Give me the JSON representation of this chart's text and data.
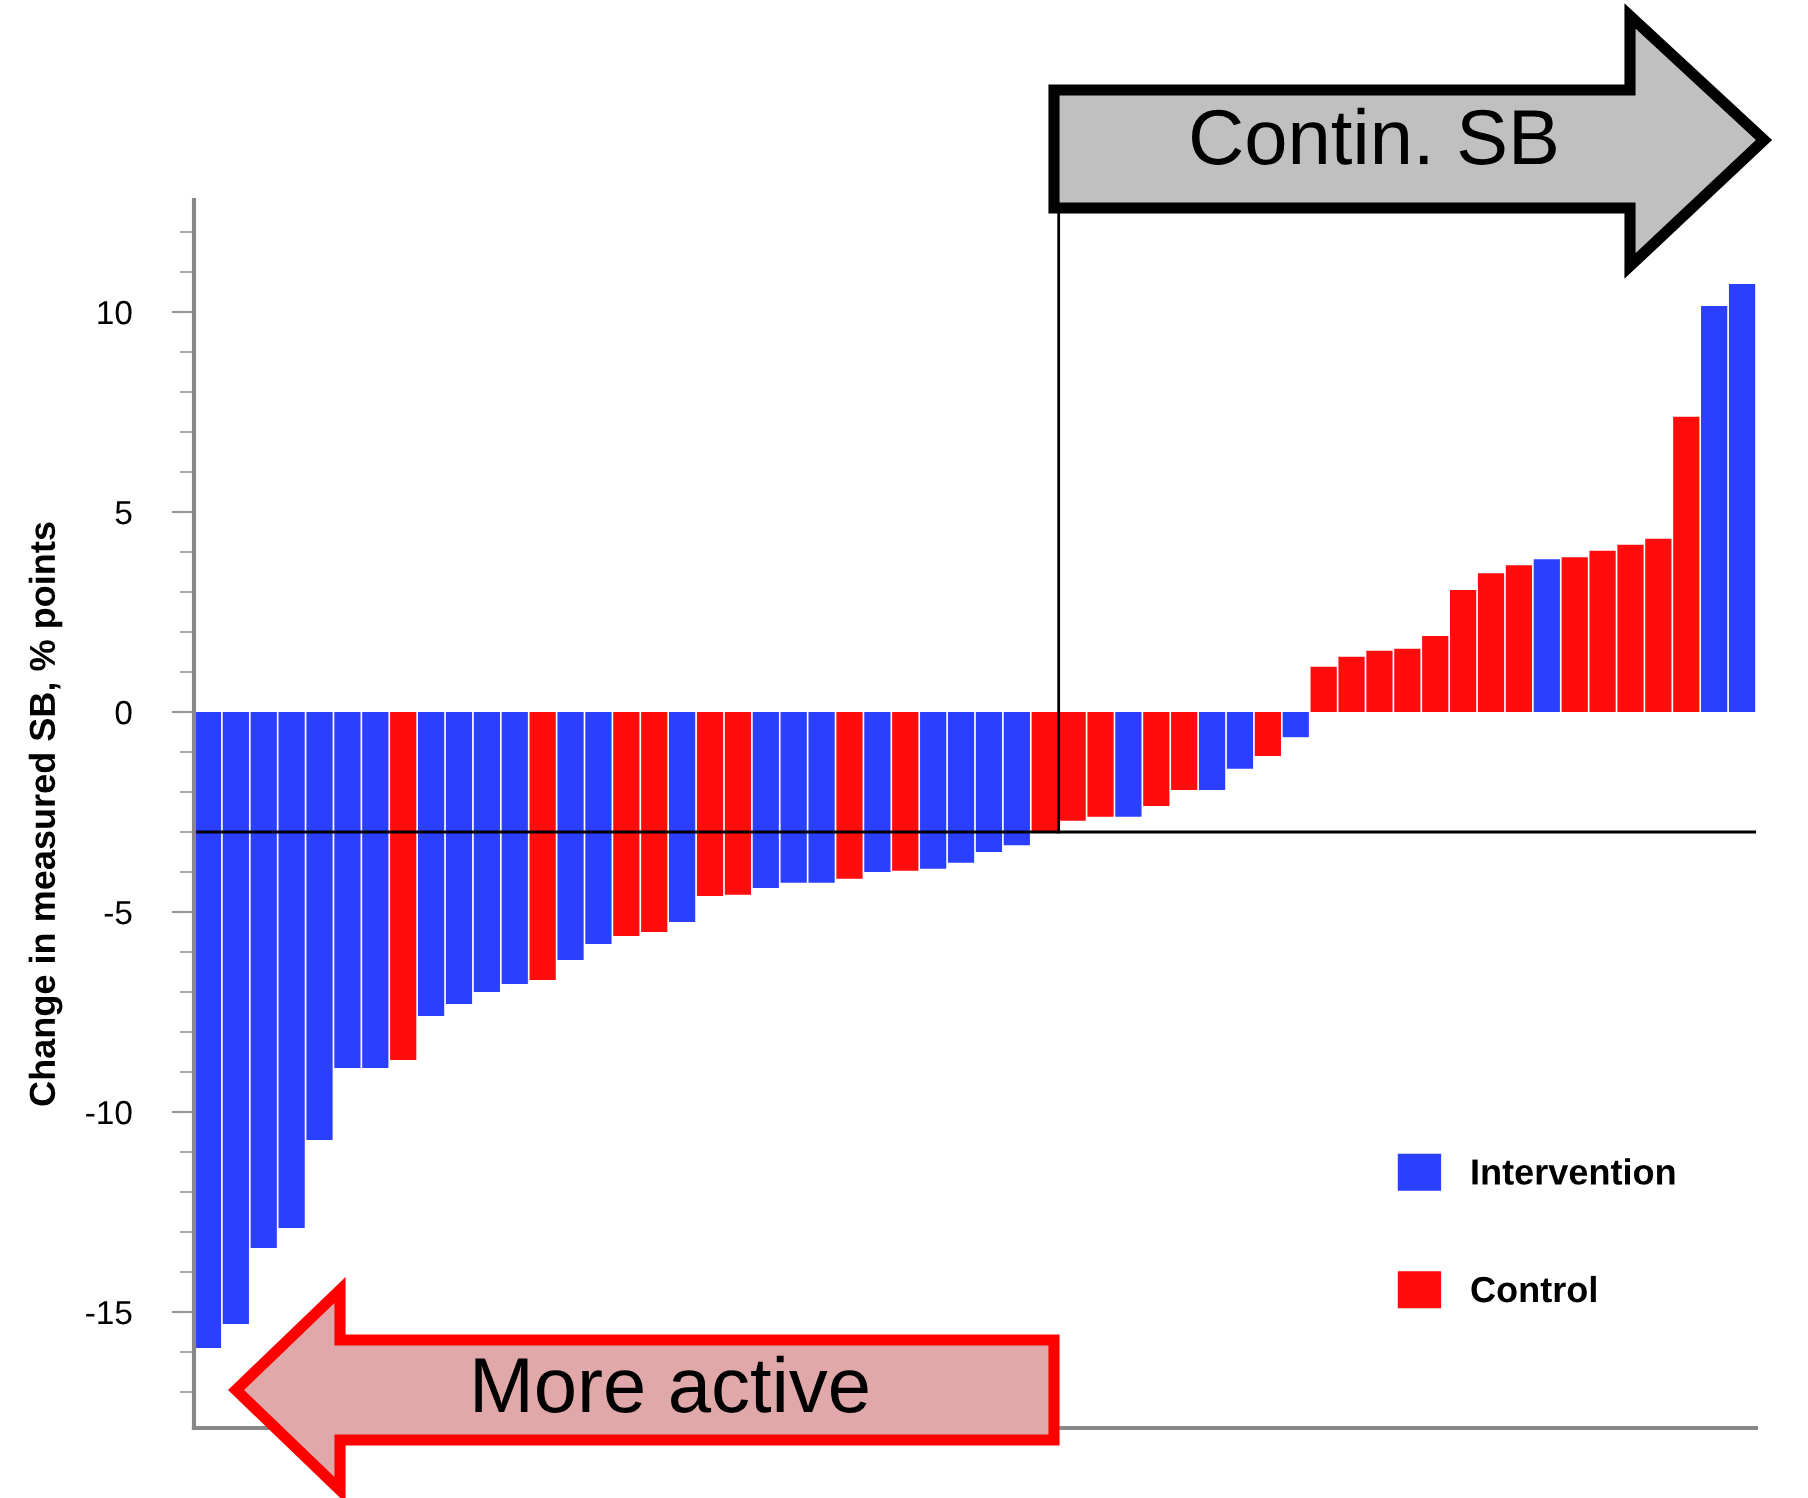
{
  "chart_data": {
    "type": "bar",
    "ylabel": "Change in measured SB, % points",
    "categories": [
      null,
      null,
      null,
      null,
      null,
      null,
      null,
      null,
      null,
      null,
      null,
      null,
      null,
      null,
      null,
      null,
      null,
      null,
      null,
      null,
      null,
      null,
      null,
      null,
      null,
      null,
      null,
      null,
      null,
      null,
      null,
      null,
      null,
      null,
      null,
      null,
      null,
      null,
      null,
      null,
      null,
      null,
      null,
      null,
      null,
      null,
      null,
      null,
      null,
      null,
      null,
      null,
      null,
      null,
      null,
      null
    ],
    "series": [
      {
        "name": "Intervention",
        "color": "#2b3fff",
        "values": [
          -15.9,
          -15.3,
          -13.4,
          -12.9,
          -10.7,
          -8.9,
          -8.9,
          null,
          -7.6,
          -7.3,
          -7.0,
          -6.8,
          null,
          -6.2,
          -5.8,
          null,
          null,
          -5.25,
          null,
          null,
          -4.4,
          -4.27,
          -4.27,
          null,
          -4.0,
          null,
          -3.92,
          -3.77,
          -3.5,
          -3.33,
          null,
          null,
          null,
          -2.62,
          null,
          null,
          -1.95,
          -1.42,
          null,
          -0.63,
          null,
          null,
          null,
          null,
          null,
          null,
          null,
          null,
          3.82,
          null,
          null,
          null,
          null,
          null,
          10.15,
          10.7
        ]
      },
      {
        "name": "Control",
        "color": "#ff0c0c",
        "values": [
          null,
          null,
          null,
          null,
          null,
          null,
          null,
          -8.7,
          null,
          null,
          null,
          null,
          -6.7,
          null,
          null,
          -5.6,
          -5.5,
          null,
          -4.6,
          -4.57,
          null,
          null,
          null,
          -4.17,
          null,
          -3.97,
          null,
          null,
          null,
          null,
          -3.0,
          -2.72,
          -2.62,
          null,
          -2.35,
          -1.95,
          null,
          null,
          -1.1,
          null,
          1.13,
          1.38,
          1.53,
          1.58,
          1.9,
          3.05,
          3.47,
          3.67,
          null,
          3.87,
          4.03,
          4.18,
          4.33,
          7.38,
          null,
          null
        ]
      }
    ],
    "ylim": [
      -17.9,
      12.8
    ],
    "yticks": [
      -15,
      -10,
      -5,
      0,
      5,
      10
    ],
    "ref_lines": [
      {
        "axis": "y",
        "value": -3.0,
        "color": "#000000"
      }
    ],
    "annotations": [
      "Contin. SB",
      "More active"
    ],
    "legend": "bottom right",
    "grid": false
  }
}
